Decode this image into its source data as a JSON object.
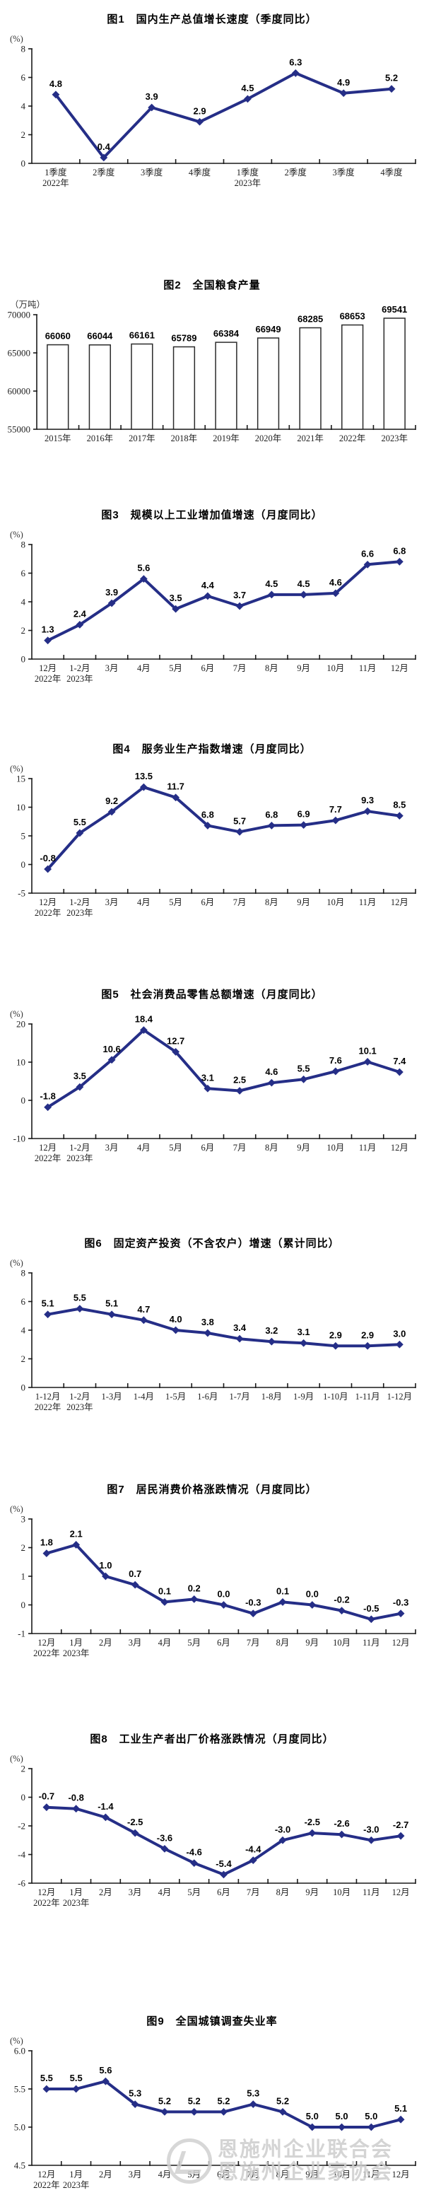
{
  "colors": {
    "line": "#252e87",
    "data_label": "#000000",
    "axis": "#1a1a1a",
    "bar_fill": "#ffffff",
    "bar_stroke": "#2a2a2a",
    "watermark": "#cdcdcd"
  },
  "watermark": {
    "line1": "恩施州企业联合会",
    "line2": "恩施州企业家协会"
  },
  "chart_data": [
    {
      "type": "line",
      "title": "图1　国内生产总值增长速度（季度同比）",
      "unit": "(%)",
      "ylim": [
        0,
        8
      ],
      "y_tick_values": [
        8,
        6,
        4,
        2,
        0
      ],
      "y_tick_labels": [
        "8",
        "6",
        "4",
        "2",
        "0"
      ],
      "categories": [
        "1季度",
        "2季度",
        "3季度",
        "4季度",
        "1季度",
        "2季度",
        "3季度",
        "4季度"
      ],
      "year_labels": [
        {
          "index": 0,
          "text": "2022年"
        },
        {
          "index": 4,
          "text": "2023年"
        }
      ],
      "values": [
        4.8,
        0.4,
        3.9,
        2.9,
        4.5,
        6.3,
        4.9,
        5.2
      ],
      "value_labels": [
        "4.8",
        "0.4",
        "3.9",
        "2.9",
        "4.5",
        "6.3",
        "4.9",
        "5.2"
      ]
    },
    {
      "type": "bar",
      "title": "图2　全国粮食产量",
      "unit": "（万吨）",
      "ylim": [
        55000,
        70000
      ],
      "y_tick_values": [
        70000,
        65000,
        60000,
        55000
      ],
      "y_tick_labels": [
        "70000",
        "65000",
        "60000",
        "55000"
      ],
      "categories": [
        "2015年",
        "2016年",
        "2017年",
        "2018年",
        "2019年",
        "2020年",
        "2021年",
        "2022年",
        "2023年"
      ],
      "year_labels": [],
      "values": [
        66060,
        66044,
        66161,
        65789,
        66384,
        66949,
        68285,
        68653,
        69541
      ],
      "value_labels": [
        "66060",
        "66044",
        "66161",
        "65789",
        "66384",
        "66949",
        "68285",
        "68653",
        "69541"
      ]
    },
    {
      "type": "line",
      "title": "图3　规模以上工业增加值增速（月度同比）",
      "unit": "(%)",
      "ylim": [
        0,
        8
      ],
      "y_tick_values": [
        8,
        6,
        4,
        2,
        0
      ],
      "y_tick_labels": [
        "8",
        "6",
        "4",
        "2",
        "0"
      ],
      "categories": [
        "12月",
        "1-2月",
        "3月",
        "4月",
        "5月",
        "6月",
        "7月",
        "8月",
        "9月",
        "10月",
        "11月",
        "12月"
      ],
      "year_labels": [
        {
          "index": 0,
          "text": "2022年"
        },
        {
          "index": 1,
          "text": "2023年"
        }
      ],
      "values": [
        1.3,
        2.4,
        3.9,
        5.6,
        3.5,
        4.4,
        3.7,
        4.5,
        4.5,
        4.6,
        6.6,
        6.8
      ],
      "value_labels": [
        "1.3",
        "2.4",
        "3.9",
        "5.6",
        "3.5",
        "4.4",
        "3.7",
        "4.5",
        "4.5",
        "4.6",
        "6.6",
        "6.8"
      ]
    },
    {
      "type": "line",
      "title": "图4　服务业生产指数增速（月度同比）",
      "unit": "(%)",
      "ylim": [
        -5,
        15
      ],
      "y_tick_values": [
        15,
        10,
        5,
        0,
        -5
      ],
      "y_tick_labels": [
        "15",
        "10",
        "5",
        "0",
        "-5"
      ],
      "categories": [
        "12月",
        "1-2月",
        "3月",
        "4月",
        "5月",
        "6月",
        "7月",
        "8月",
        "9月",
        "10月",
        "11月",
        "12月"
      ],
      "year_labels": [
        {
          "index": 0,
          "text": "2022年"
        },
        {
          "index": 1,
          "text": "2023年"
        }
      ],
      "values": [
        -0.8,
        5.5,
        9.2,
        13.5,
        11.7,
        6.8,
        5.7,
        6.8,
        6.9,
        7.7,
        9.3,
        8.5
      ],
      "value_labels": [
        "-0.8",
        "5.5",
        "9.2",
        "13.5",
        "11.7",
        "6.8",
        "5.7",
        "6.8",
        "6.9",
        "7.7",
        "9.3",
        "8.5"
      ]
    },
    {
      "type": "line",
      "title": "图5　社会消费品零售总额增速（月度同比）",
      "unit": "(%)",
      "ylim": [
        -10,
        20
      ],
      "y_tick_values": [
        20,
        10,
        0,
        -10
      ],
      "y_tick_labels": [
        "20",
        "10",
        "0",
        "-10"
      ],
      "categories": [
        "12月",
        "1-2月",
        "3月",
        "4月",
        "5月",
        "6月",
        "7月",
        "8月",
        "9月",
        "10月",
        "11月",
        "12月"
      ],
      "year_labels": [
        {
          "index": 0,
          "text": "2022年"
        },
        {
          "index": 1,
          "text": "2023年"
        }
      ],
      "values": [
        -1.8,
        3.5,
        10.6,
        18.4,
        12.7,
        3.1,
        2.5,
        4.6,
        5.5,
        7.6,
        10.1,
        7.4
      ],
      "value_labels": [
        "-1.8",
        "3.5",
        "10.6",
        "18.4",
        "12.7",
        "3.1",
        "2.5",
        "4.6",
        "5.5",
        "7.6",
        "10.1",
        "7.4"
      ]
    },
    {
      "type": "line",
      "title": "图6　固定资产投资（不含农户）增速（累计同比）",
      "unit": "(%)",
      "ylim": [
        0,
        8
      ],
      "y_tick_values": [
        8,
        6,
        4,
        2,
        0
      ],
      "y_tick_labels": [
        "8",
        "6",
        "4",
        "2",
        "0"
      ],
      "categories": [
        "1-12月",
        "1-2月",
        "1-3月",
        "1-4月",
        "1-5月",
        "1-6月",
        "1-7月",
        "1-8月",
        "1-9月",
        "1-10月",
        "1-11月",
        "1-12月"
      ],
      "year_labels": [
        {
          "index": 0,
          "text": "2022年"
        },
        {
          "index": 1,
          "text": "2023年"
        }
      ],
      "values": [
        5.1,
        5.5,
        5.1,
        4.7,
        4.0,
        3.8,
        3.4,
        3.2,
        3.1,
        2.9,
        2.9,
        3.0
      ],
      "value_labels": [
        "5.1",
        "5.5",
        "5.1",
        "4.7",
        "4.0",
        "3.8",
        "3.4",
        "3.2",
        "3.1",
        "2.9",
        "2.9",
        "3.0"
      ]
    },
    {
      "type": "line",
      "title": "图7　居民消费价格涨跌情况（月度同比）",
      "unit": "(%)",
      "ylim": [
        -1,
        3
      ],
      "y_tick_values": [
        3,
        2,
        1,
        0,
        -1
      ],
      "y_tick_labels": [
        "3",
        "2",
        "1",
        "0",
        "-1"
      ],
      "categories": [
        "12月",
        "1月",
        "2月",
        "3月",
        "4月",
        "5月",
        "6月",
        "7月",
        "8月",
        "9月",
        "10月",
        "11月",
        "12月"
      ],
      "year_labels": [
        {
          "index": 0,
          "text": "2022年"
        },
        {
          "index": 1,
          "text": "2023年"
        }
      ],
      "values": [
        1.8,
        2.1,
        1.0,
        0.7,
        0.1,
        0.2,
        0.0,
        -0.3,
        0.1,
        0.0,
        -0.2,
        -0.5,
        -0.3
      ],
      "value_labels": [
        "1.8",
        "2.1",
        "1.0",
        "0.7",
        "0.1",
        "0.2",
        "0.0",
        "-0.3",
        "0.1",
        "0.0",
        "-0.2",
        "-0.5",
        "-0.3"
      ]
    },
    {
      "type": "line",
      "title": "图8　工业生产者出厂价格涨跌情况（月度同比）",
      "unit": "(%)",
      "ylim": [
        -6,
        2
      ],
      "y_tick_values": [
        2,
        0,
        -2,
        -4,
        -6
      ],
      "y_tick_labels": [
        "2",
        "0",
        "-2",
        "-4",
        "-6"
      ],
      "categories": [
        "12月",
        "1月",
        "2月",
        "3月",
        "4月",
        "5月",
        "6月",
        "7月",
        "8月",
        "9月",
        "10月",
        "11月",
        "12月"
      ],
      "year_labels": [
        {
          "index": 0,
          "text": "2022年"
        },
        {
          "index": 1,
          "text": "2023年"
        }
      ],
      "values": [
        -0.7,
        -0.8,
        -1.4,
        -2.5,
        -3.6,
        -4.6,
        -5.4,
        -4.4,
        -3.0,
        -2.5,
        -2.6,
        -3.0,
        -2.7
      ],
      "value_labels": [
        "-0.7",
        "-0.8",
        "-1.4",
        "-2.5",
        "-3.6",
        "-4.6",
        "-5.4",
        "-4.4",
        "-3.0",
        "-2.5",
        "-2.6",
        "-3.0",
        "-2.7"
      ]
    },
    {
      "type": "line",
      "title": "图9　全国城镇调查失业率",
      "unit": "(%)",
      "ylim": [
        4.5,
        6.0
      ],
      "y_tick_values": [
        6.0,
        5.5,
        5.0,
        4.5
      ],
      "y_tick_labels": [
        "6.0",
        "5.5",
        "5.0",
        "4.5"
      ],
      "categories": [
        "12月",
        "1月",
        "2月",
        "3月",
        "4月",
        "5月",
        "6月",
        "7月",
        "8月",
        "9月",
        "10月",
        "11月",
        "12月"
      ],
      "year_labels": [
        {
          "index": 0,
          "text": "2022年"
        },
        {
          "index": 1,
          "text": "2023年"
        }
      ],
      "values": [
        5.5,
        5.5,
        5.6,
        5.3,
        5.2,
        5.2,
        5.2,
        5.3,
        5.2,
        5.0,
        5.0,
        5.0,
        5.1
      ],
      "value_labels": [
        "5.5",
        "5.5",
        "5.6",
        "5.3",
        "5.2",
        "5.2",
        "5.2",
        "5.3",
        "5.2",
        "5.0",
        "5.0",
        "5.0",
        "5.1"
      ]
    }
  ]
}
